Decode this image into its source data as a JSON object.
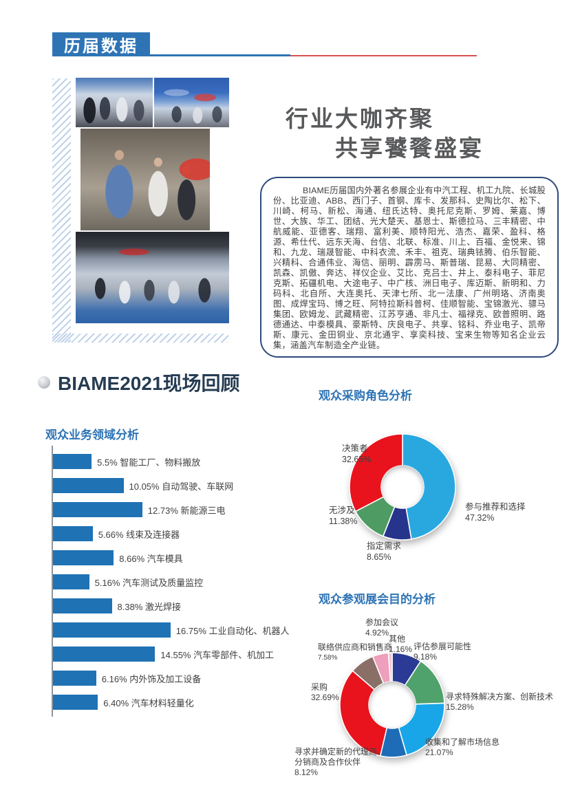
{
  "header": {
    "title": "历届数据"
  },
  "hero": {
    "heading_line1": "行业大咖齐聚",
    "heading_line2": "共享饕餮盛宴",
    "paragraph": "BIAME历届国内外著名参展企业有中汽工程、机工九院、长城股份、比亚迪、ABB、西门子、首钢、库卡、发那科、史陶比尔、松下、川崎、柯马、新松、海通、纽氏达特、奥托尼克斯、罗姆、莱嘉、博世、大族、华工、团结、光大楚天、基恩士、斯德拉马、三丰精密、中航威能、亚德客、瑞翔、富利美、顺特阳光、浩杰、嘉荣、盈科、格源、希仕代、远东天海、台信、北联、标准、川上、百福、金悦来、锦和、九龙、瑞晟智能、中科衣流、禾丰、祖克、瑞典铱腾、伯乐智能、兴精科、合通伟业、海信、丽明、霹雳马、斯普瑞、昆易、大同精密、凯森、凯傲、奔达、祥仪企业、艾比、克吕士、井上、泰科电子、菲尼克斯、拓疆机电、大途电子、中广核、洲日电子、库迈斯、新明和、力码科、北自所、大连奥托、天津七所、北一法康、广州明珞、济南奥图、成焊宝玛、博之旺、阿特拉斯科普柯、佳顺智能、宝锦激光、骠马集团、欧姆龙、武藏精密、江苏亨通、非凡士、福禄克、欧普照明、路德通达、中泰模具、豪斯特、庆良电子、共享、铭科、乔业电子、凯帝斯、康元、金田铜业、京北通宇、享奕科技、宝来生物等知名企业云集，涵盖汽车制造全产业链。"
  },
  "section": {
    "title": "BIAME2021现场回顾"
  },
  "colors": {
    "accent_blue": "#2E74B5",
    "header_rule_red": "#D75050",
    "section_title_navy": "#263C52",
    "hero_heading_gray": "#58595B"
  },
  "chart_data": [
    {
      "type": "bar",
      "orientation": "horizontal",
      "title": "观众业务领域分析",
      "categories": [
        "智能工厂、物料搬放",
        "自动驾驶、车联网",
        "新能源三电",
        "线束及连接器",
        "汽车模具",
        "汽车测试及质量监控",
        "激光焊接",
        "工业自动化、机器人",
        "汽车零部件、机加工",
        "内外饰及加工设备",
        "汽车材料轻量化"
      ],
      "values": [
        5.5,
        10.05,
        12.73,
        5.66,
        8.66,
        5.16,
        8.38,
        16.75,
        14.55,
        6.16,
        6.4
      ],
      "value_labels": [
        "5.5%",
        "10.05%",
        "12.73%",
        "5.66%",
        "8.66%",
        "5.16%",
        "8.38%",
        "16.75%",
        "14.55%",
        "6.16%",
        "6.40%"
      ],
      "bar_color": "#1F72B4",
      "xlabel": "",
      "ylabel": "",
      "xlim": [
        0,
        17.5
      ],
      "grid": false,
      "legend": "none"
    },
    {
      "type": "pie",
      "donut": true,
      "title": "观众采购角色分析",
      "start_angle_deg": 0,
      "direction": "clockwise",
      "slices": [
        {
          "label": "参与推荐和选择",
          "value": 47.32,
          "pct": "47.32%",
          "color": "#29A8E0"
        },
        {
          "label": "指定需求",
          "value": 8.65,
          "pct": "8.65%",
          "color": "#27348B"
        },
        {
          "label": "无涉及",
          "value": 11.38,
          "pct": "11.38%",
          "color": "#4E9B63"
        },
        {
          "label": "决策者",
          "value": 32.65,
          "pct": "32.65%",
          "color": "#E8131D"
        }
      ]
    },
    {
      "type": "pie",
      "donut": true,
      "title": "观众参观展会目的分析",
      "start_angle_deg": 0,
      "direction": "clockwise",
      "slices": [
        {
          "label": "评估参展可能性",
          "value": 9.18,
          "pct": "9.18%",
          "color": "#2B3A94"
        },
        {
          "label": "寻求特殊解决方案、创新技术",
          "value": 15.28,
          "pct": "15.28%",
          "color": "#4FA26B"
        },
        {
          "label": "收集和了解市场信息",
          "value": 21.07,
          "pct": "21.07%",
          "color": "#19A6E9"
        },
        {
          "label": "寻求并确定新的代理商、分销商及合作伙伴",
          "value": 8.12,
          "pct": "8.12%",
          "color": "#1E6CB8",
          "label_line1": "寻求并确定新的代理商、",
          "label_line2": "分销商及合作伙伴"
        },
        {
          "label": "采购",
          "value": 32.69,
          "pct": "32.69%",
          "color": "#E8131D"
        },
        {
          "label": "联络供应商和销售商",
          "value": 7.58,
          "pct": "7.58%",
          "color": "#8A6F66"
        },
        {
          "label": "参加会议",
          "value": 4.92,
          "pct": "4.92%",
          "color": "#EE9FBB"
        },
        {
          "label": "其他",
          "value": 1.16,
          "pct": "1.16%",
          "color": "#F2C4D4"
        }
      ]
    }
  ]
}
